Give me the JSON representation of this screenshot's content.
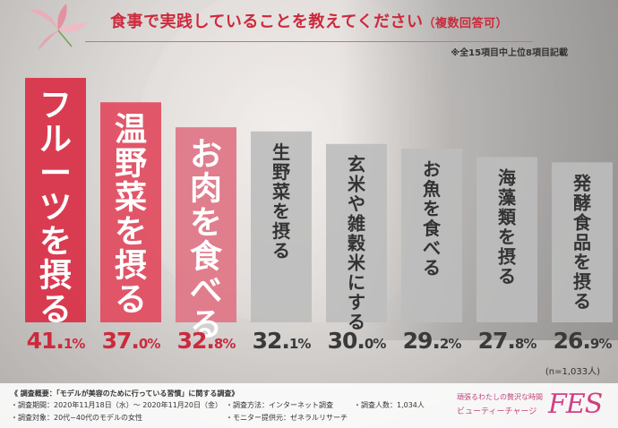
{
  "header": {
    "title": "食事で実践していることを教えてください",
    "title_suffix": "（複数回答可）",
    "note": "※全15項目中上位8項目記載"
  },
  "colors": {
    "top_bar_1": "#d9344a",
    "top_bar_2": "#e04f62",
    "top_bar_3": "#df7888",
    "other_bars": "#bdbdbd",
    "top_text": "#cc2a3c",
    "other_text": "#3a3a3a"
  },
  "chart_data": {
    "type": "bar",
    "categories": [
      "フルーツを摂る",
      "温野菜を摂る",
      "お肉を食べる",
      "生野菜を摂る",
      "玄米や雑穀米にする",
      "お魚を食べる",
      "海藻類を摂る",
      "発酵食品を摂る"
    ],
    "values": [
      41.1,
      37.0,
      32.8,
      32.1,
      30.0,
      29.2,
      27.8,
      26.9
    ],
    "value_labels_int": [
      "41.",
      "37.",
      "32.",
      "32.",
      "30.",
      "29.",
      "27.",
      "26."
    ],
    "value_labels_dec": [
      "1%",
      "0%",
      "8%",
      "1%",
      "0%",
      "2%",
      "8%",
      "9%"
    ],
    "sample_size": "(n=1,033人)",
    "ylim": [
      0,
      41.1
    ]
  },
  "footer": {
    "survey_heading": "《 調査概要：「モデルが美容のために行っている習慣」に関する調査》",
    "period": "・調査期間：2020年11月18日（水）～ 2020年11月20日（金）",
    "method": "・調査方法：インターネット調査",
    "respondents": "・調査人数：1,034人",
    "target": "・調査対象：20代~40代のモデルの女性",
    "provider": "・モニター提供元：ゼネラルリサーチ",
    "brand_tagline": "頑張るわたしの贅沢な時間",
    "brand_name": "ビューティーチャージ",
    "brand_logo": "FES"
  }
}
